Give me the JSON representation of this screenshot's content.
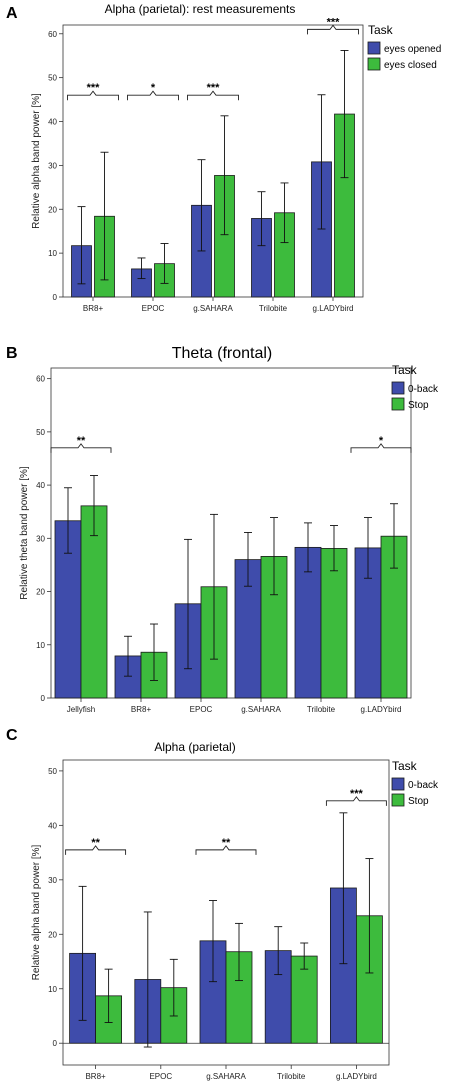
{
  "colors": {
    "series1": "#3f4cab",
    "series2": "#3dbb3d",
    "edge": "#1a1a1a",
    "background": "#ffffff"
  },
  "chart_data": [
    {
      "panel": "A",
      "type": "bar",
      "title": "Alpha (parietal): rest measurements",
      "ylabel": "Relative alpha band power [%]",
      "ylim": [
        0,
        62
      ],
      "yticks": [
        0,
        10,
        20,
        30,
        40,
        50,
        60
      ],
      "categories": [
        "BR8+",
        "EPOC",
        "g.SAHARA",
        "Trilobite",
        "g.LADYbird"
      ],
      "legend": {
        "title": "Task",
        "position": "top-right"
      },
      "series": [
        {
          "name": "eyes opened",
          "values": [
            11.7,
            6.4,
            20.9,
            17.9,
            30.8
          ],
          "err_low": [
            3.0,
            4.2,
            10.5,
            11.7,
            15.5
          ],
          "err_high": [
            20.6,
            8.9,
            31.3,
            24.0,
            46.1
          ]
        },
        {
          "name": "eyes closed",
          "values": [
            18.4,
            7.6,
            27.7,
            19.2,
            41.7
          ],
          "err_low": [
            3.9,
            3.1,
            14.2,
            12.4,
            27.2
          ],
          "err_high": [
            33.0,
            12.2,
            41.3,
            26.0,
            56.2
          ]
        }
      ],
      "significance": [
        {
          "category": 0,
          "label": "***",
          "y": 46
        },
        {
          "category": 1,
          "label": "*",
          "y": 46
        },
        {
          "category": 2,
          "label": "***",
          "y": 46
        },
        {
          "category": 4,
          "label": "***",
          "y": 61
        }
      ]
    },
    {
      "panel": "B",
      "type": "bar",
      "title": "Theta (frontal)",
      "ylabel": "Relative theta band power [%]",
      "ylim": [
        0,
        62
      ],
      "yticks": [
        0,
        10,
        20,
        30,
        40,
        50,
        60
      ],
      "categories": [
        "Jellyfish",
        "BR8+",
        "EPOC",
        "g.SAHARA",
        "Trilobite",
        "g.LADYbird"
      ],
      "legend": {
        "title": "Task",
        "position": "top-right"
      },
      "series": [
        {
          "name": "0-back",
          "values": [
            33.3,
            7.9,
            17.7,
            26.0,
            28.3,
            28.2
          ],
          "err_low": [
            27.2,
            4.1,
            5.5,
            21.0,
            23.7,
            22.5
          ],
          "err_high": [
            39.5,
            11.6,
            29.8,
            31.1,
            32.9,
            33.9
          ]
        },
        {
          "name": "Stop",
          "values": [
            36.1,
            8.6,
            20.9,
            26.6,
            28.1,
            30.4
          ],
          "err_low": [
            30.5,
            3.3,
            7.3,
            19.4,
            23.9,
            24.4
          ],
          "err_high": [
            41.8,
            13.9,
            34.5,
            33.9,
            32.4,
            36.5
          ]
        }
      ],
      "significance": [
        {
          "category": 0,
          "label": "**",
          "y": 47
        },
        {
          "category": 5,
          "label": "*",
          "y": 47
        }
      ]
    },
    {
      "panel": "C",
      "type": "bar",
      "title": "Alpha (parietal)",
      "ylabel": "Relative alpha band power [%]",
      "ylim": [
        -4,
        52
      ],
      "yticks": [
        0,
        10,
        20,
        30,
        40,
        50
      ],
      "categories": [
        "BR8+",
        "EPOC",
        "g.SAHARA",
        "Trilobite",
        "g.LADYbird"
      ],
      "legend": {
        "title": "Task",
        "position": "top-right"
      },
      "series": [
        {
          "name": "0-back",
          "values": [
            16.5,
            11.7,
            18.8,
            17.0,
            28.5
          ],
          "err_low": [
            4.2,
            -0.7,
            11.3,
            12.6,
            14.6
          ],
          "err_high": [
            28.8,
            24.1,
            26.2,
            21.4,
            42.3
          ]
        },
        {
          "name": "Stop",
          "values": [
            8.7,
            10.2,
            16.8,
            16.0,
            23.4
          ],
          "err_low": [
            3.8,
            5.0,
            11.5,
            13.6,
            12.9
          ],
          "err_high": [
            13.6,
            15.4,
            22.0,
            18.4,
            33.9
          ]
        }
      ],
      "significance": [
        {
          "category": 0,
          "label": "**",
          "y": 35.5
        },
        {
          "category": 2,
          "label": "**",
          "y": 35.5
        },
        {
          "category": 4,
          "label": "***",
          "y": 44.5
        }
      ]
    }
  ]
}
